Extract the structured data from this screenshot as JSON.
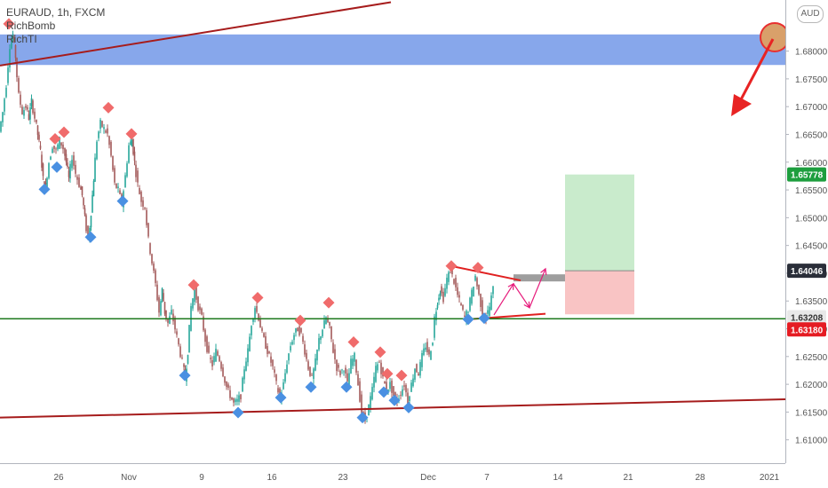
{
  "header": {
    "symbol_line": "EURAUD, 1h, FXCM",
    "indicators": [
      "RichBomb",
      "RichTI"
    ],
    "currency_button": "AUD"
  },
  "chart_data": {
    "type": "candlestick",
    "symbol": "EURAUD",
    "timeframe": "1h",
    "source": "FXCM",
    "ylim": [
      1.6058,
      1.6892
    ],
    "y_ticks": [
      "1.68000",
      "1.67500",
      "1.67000",
      "1.66500",
      "1.66000",
      "1.65500",
      "1.65000",
      "1.64500",
      "1.64000",
      "1.63500",
      "1.63000",
      "1.62500",
      "1.62000",
      "1.61500",
      "1.61000"
    ],
    "x_ticks": [
      "26",
      "Nov",
      "9",
      "16",
      "23",
      "Dec",
      "7",
      "14",
      "21",
      "28",
      "2021"
    ],
    "price_labels": [
      {
        "value": "1.65778",
        "color": "#1e9e3e"
      },
      {
        "value": "1.64046",
        "color": "#ffffff"
      },
      {
        "value": "1.63208",
        "color": "#e8e8e8"
      },
      {
        "value": "1.63180",
        "color": "#e51c23"
      }
    ],
    "price_path": [
      [
        0,
        1.6655
      ],
      [
        4,
        1.669
      ],
      [
        8,
        1.674
      ],
      [
        12,
        1.681
      ],
      [
        15,
        1.683
      ],
      [
        18,
        1.679
      ],
      [
        22,
        1.672
      ],
      [
        26,
        1.669
      ],
      [
        30,
        1.67
      ],
      [
        33,
        1.668
      ],
      [
        36,
        1.671
      ],
      [
        40,
        1.668
      ],
      [
        43,
        1.665
      ],
      [
        46,
        1.662
      ],
      [
        49,
        1.657
      ],
      [
        52,
        1.6555
      ],
      [
        56,
        1.66
      ],
      [
        60,
        1.663
      ],
      [
        64,
        1.662
      ],
      [
        68,
        1.664
      ],
      [
        72,
        1.6625
      ],
      [
        75,
        1.66
      ],
      [
        78,
        1.657
      ],
      [
        82,
        1.661
      ],
      [
        86,
        1.658
      ],
      [
        90,
        1.656
      ],
      [
        93,
        1.654
      ],
      [
        96,
        1.65
      ],
      [
        100,
        1.646
      ],
      [
        103,
        1.651
      ],
      [
        106,
        1.657
      ],
      [
        110,
        1.664
      ],
      [
        114,
        1.667
      ],
      [
        118,
        1.666
      ],
      [
        122,
        1.665
      ],
      [
        126,
        1.661
      ],
      [
        130,
        1.656
      ],
      [
        134,
        1.655
      ],
      [
        138,
        1.6525
      ],
      [
        142,
        1.6575
      ],
      [
        146,
        1.663
      ],
      [
        149,
        1.664
      ],
      [
        152,
        1.66
      ],
      [
        156,
        1.656
      ],
      [
        160,
        1.653
      ],
      [
        164,
        1.652
      ],
      [
        168,
        1.646
      ],
      [
        172,
        1.642
      ],
      [
        176,
        1.638
      ],
      [
        180,
        1.633
      ],
      [
        183,
        1.637
      ],
      [
        186,
        1.633
      ],
      [
        190,
        1.631
      ],
      [
        194,
        1.633
      ],
      [
        198,
        1.63
      ],
      [
        202,
        1.627
      ],
      [
        206,
        1.624
      ],
      [
        209,
        1.621
      ],
      [
        212,
        1.626
      ],
      [
        216,
        1.634
      ],
      [
        220,
        1.637
      ],
      [
        224,
        1.634
      ],
      [
        228,
        1.632
      ],
      [
        232,
        1.628
      ],
      [
        236,
        1.625
      ],
      [
        240,
        1.6235
      ],
      [
        244,
        1.626
      ],
      [
        248,
        1.6245
      ],
      [
        252,
        1.622
      ],
      [
        256,
        1.6195
      ],
      [
        260,
        1.618
      ],
      [
        264,
        1.6165
      ],
      [
        268,
        1.617
      ],
      [
        272,
        1.618
      ],
      [
        276,
        1.623
      ],
      [
        280,
        1.626
      ],
      [
        284,
        1.631
      ],
      [
        288,
        1.634
      ],
      [
        292,
        1.632
      ],
      [
        296,
        1.629
      ],
      [
        300,
        1.627
      ],
      [
        304,
        1.625
      ],
      [
        308,
        1.623
      ],
      [
        312,
        1.62
      ],
      [
        316,
        1.6175
      ],
      [
        320,
        1.62
      ],
      [
        324,
        1.624
      ],
      [
        328,
        1.627
      ],
      [
        332,
        1.629
      ],
      [
        336,
        1.63
      ],
      [
        340,
        1.629
      ],
      [
        344,
        1.626
      ],
      [
        348,
        1.623
      ],
      [
        352,
        1.621
      ],
      [
        356,
        1.624
      ],
      [
        360,
        1.628
      ],
      [
        364,
        1.63
      ],
      [
        368,
        1.632
      ],
      [
        372,
        1.63
      ],
      [
        376,
        1.626
      ],
      [
        380,
        1.623
      ],
      [
        384,
        1.622
      ],
      [
        388,
        1.623
      ],
      [
        392,
        1.62
      ],
      [
        396,
        1.624
      ],
      [
        400,
        1.625
      ],
      [
        404,
        1.62
      ],
      [
        408,
        1.615
      ],
      [
        412,
        1.6135
      ],
      [
        416,
        1.616
      ],
      [
        420,
        1.619
      ],
      [
        424,
        1.623
      ],
      [
        428,
        1.624
      ],
      [
        432,
        1.621
      ],
      [
        436,
        1.619
      ],
      [
        440,
        1.62
      ],
      [
        444,
        1.618
      ],
      [
        448,
        1.617
      ],
      [
        452,
        1.6185
      ],
      [
        456,
        1.62
      ],
      [
        460,
        1.617
      ],
      [
        464,
        1.62
      ],
      [
        468,
        1.623
      ],
      [
        472,
        1.622
      ],
      [
        476,
        1.625
      ],
      [
        480,
        1.627
      ],
      [
        484,
        1.625
      ],
      [
        488,
        1.628
      ],
      [
        490,
        1.632
      ],
      [
        493,
        1.635
      ],
      [
        496,
        1.637
      ],
      [
        500,
        1.6355
      ],
      [
        504,
        1.639
      ],
      [
        508,
        1.6405
      ],
      [
        512,
        1.6385
      ],
      [
        516,
        1.636
      ],
      [
        520,
        1.634
      ],
      [
        524,
        1.632
      ],
      [
        528,
        1.6335
      ],
      [
        532,
        1.6365
      ],
      [
        536,
        1.6395
      ],
      [
        540,
        1.636
      ],
      [
        544,
        1.633
      ],
      [
        548,
        1.632
      ],
      [
        552,
        1.634
      ],
      [
        556,
        1.6372
      ]
    ],
    "buy_signals": [
      [
        50,
        1.6551
      ],
      [
        64,
        1.6591
      ],
      [
        102,
        1.6465
      ],
      [
        138,
        1.653
      ],
      [
        208,
        1.6216
      ],
      [
        268,
        1.6149
      ],
      [
        316,
        1.6176
      ],
      [
        350,
        1.6195
      ],
      [
        390,
        1.6195
      ],
      [
        408,
        1.614
      ],
      [
        432,
        1.6186
      ],
      [
        444,
        1.6171
      ],
      [
        460,
        1.6158
      ],
      [
        527,
        1.6317
      ],
      [
        545,
        1.6319
      ]
    ],
    "sell_signals": [
      [
        10,
        1.6849
      ],
      [
        62,
        1.6642
      ],
      [
        72,
        1.6654
      ],
      [
        122,
        1.6698
      ],
      [
        148,
        1.6651
      ],
      [
        218,
        1.6379
      ],
      [
        290,
        1.6356
      ],
      [
        338,
        1.6315
      ],
      [
        370,
        1.6347
      ],
      [
        398,
        1.6276
      ],
      [
        428,
        1.6258
      ],
      [
        436,
        1.6219
      ],
      [
        452,
        1.6216
      ],
      [
        508,
        1.6413
      ],
      [
        538,
        1.641
      ]
    ],
    "annotations": {
      "resistance_zone": {
        "from": 1.6775,
        "to": 1.683
      },
      "horizontal_support": 1.6318,
      "trendlines": [
        {
          "x1": 0,
          "y1": 1.6774,
          "x2": 440,
          "y2": 1.6888
        },
        {
          "x1": 0,
          "y1": 1.614,
          "x2": 884,
          "y2": 1.6173
        },
        {
          "x1": 508,
          "y1": 1.6413,
          "x2": 586,
          "y2": 1.6387
        },
        {
          "x1": 527,
          "y1": 1.6317,
          "x2": 614,
          "y2": 1.6327
        }
      ],
      "projection": [
        [
          556,
          1.6325
        ],
        [
          578,
          1.6381
        ],
        [
          596,
          1.6338
        ],
        [
          614,
          1.6408
        ]
      ],
      "position": {
        "x_start": 636,
        "x_end": 714,
        "entry": 1.64046,
        "target": 1.65778,
        "stop": 1.6318
      }
    }
  }
}
